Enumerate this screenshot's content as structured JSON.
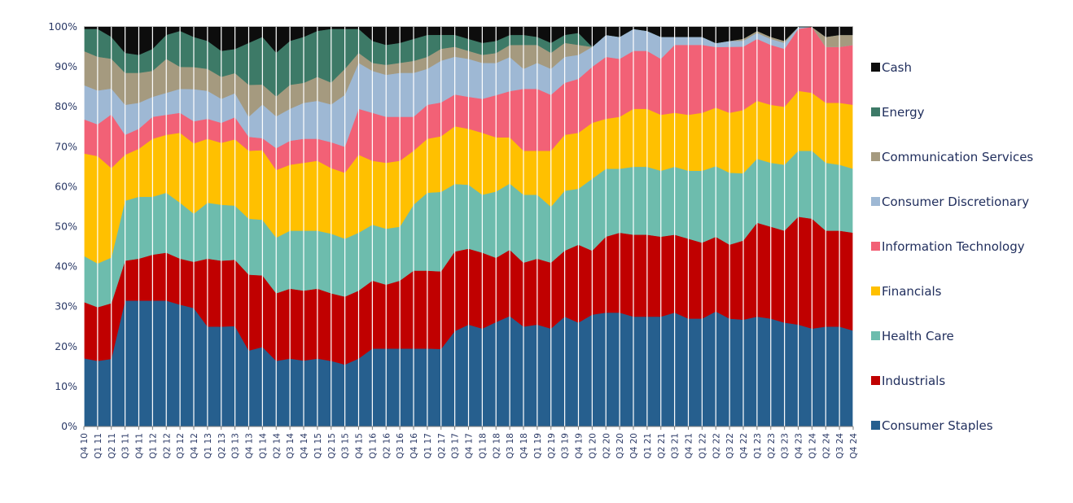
{
  "chart_data": {
    "type": "area",
    "stacked": true,
    "normalized": true,
    "title": "",
    "xlabel": "",
    "ylabel": "",
    "ylim": [
      0,
      100
    ],
    "yticks": [
      "0%",
      "10%",
      "20%",
      "30%",
      "40%",
      "50%",
      "60%",
      "70%",
      "80%",
      "90%",
      "100%"
    ],
    "legend_position": "right",
    "grid": false,
    "categories": [
      "Q4 10",
      "Q1 11",
      "Q2 11",
      "Q3 11",
      "Q4 11",
      "Q1 12",
      "Q2 12",
      "Q3 12",
      "Q4 12",
      "Q1 13",
      "Q2 13",
      "Q3 13",
      "Q4 13",
      "Q1 14",
      "Q2 14",
      "Q3 14",
      "Q4 14",
      "Q1 15",
      "Q2 15",
      "Q3 15",
      "Q4 15",
      "Q1 16",
      "Q2 16",
      "Q3 16",
      "Q4 16",
      "Q1 17",
      "Q2 17",
      "Q3 17",
      "Q4 17",
      "Q1 18",
      "Q2 18",
      "Q3 18",
      "Q4 18",
      "Q1 19",
      "Q2 19",
      "Q3 19",
      "Q4 19",
      "Q1 20",
      "Q2 20",
      "Q3 20",
      "Q4 20",
      "Q1 21",
      "Q2 21",
      "Q3 21",
      "Q4 21",
      "Q1 22",
      "Q2 22",
      "Q3 22",
      "Q4 22",
      "Q1 23",
      "Q2 23",
      "Q3 23",
      "Q4 23",
      "Q1 24",
      "Q2 24",
      "Q3 24",
      "Q4 24"
    ],
    "x_tick_labels": [
      "Q4 10",
      "Q1 11",
      "Q2 11",
      "Q3 11",
      "Q4 11",
      "Q1 12",
      "Q2 12",
      "Q3 12",
      "Q4 12",
      "Q1 13",
      "Q2 13",
      "Q3 13",
      "Q4 13",
      "Q1 14",
      "Q2 14",
      "Q3 14",
      "Q4 14",
      "Q1 15",
      "Q2 15",
      "Q3 15",
      "Q4 15",
      "Q1 16",
      "Q2 16",
      "Q3 16",
      "Q4 16",
      "Q1 17",
      "Q2 17",
      "Q3 17",
      "Q4 17",
      "Q1 18",
      "Q2 18",
      "Q3 18",
      "Q4 18",
      "Q1 19",
      "Q2 19",
      "Q3 19",
      "Q4 19",
      "Q1 20",
      "Q2 20",
      "Q3 20",
      "Q4 20",
      "Q1 21",
      "Q2 21",
      "Q3 21",
      "Q4 21",
      "Q1 22",
      "Q2 22",
      "Q3 22",
      "Q4 22",
      "Q1 23",
      "Q2 23",
      "Q3 23",
      "Q4 23",
      "Q1 24",
      "Q2 24",
      "Q3 24",
      "Q4 24"
    ],
    "series": [
      {
        "name": "Consumer Staples",
        "color": "#265f8e",
        "values": [
          17,
          16.5,
          17,
          31.5,
          31.5,
          31.5,
          31.5,
          30.5,
          29.5,
          25,
          25,
          25,
          19,
          20,
          16.5,
          17,
          16.5,
          17,
          16.5,
          15.5,
          17,
          19.5,
          19.5,
          19.5,
          19.5,
          19.5,
          19.5,
          24,
          25.5,
          24.5,
          26,
          27.5,
          25,
          25.5,
          24.5,
          27.5,
          26,
          28,
          28.5,
          28.5,
          27.5,
          27.5,
          27.5,
          28.5,
          27,
          27,
          28.5,
          27,
          27,
          27.5,
          27,
          26,
          25.5,
          24.5,
          25,
          25,
          24
        ]
      },
      {
        "name": "Industrials",
        "color": "#c00000",
        "values": [
          14,
          13.5,
          14,
          10,
          10.5,
          11.5,
          12,
          11.5,
          11.5,
          17,
          16.5,
          16.5,
          19,
          18,
          17,
          17.5,
          17.5,
          17.5,
          17,
          17,
          17,
          17,
          16,
          17,
          19.5,
          19.5,
          19.5,
          20,
          19,
          19,
          16,
          16.5,
          16,
          16.5,
          16.5,
          16.5,
          19.5,
          16,
          19,
          20,
          20.5,
          20.5,
          20,
          19.5,
          20,
          19,
          18.5,
          18.5,
          20,
          23.5,
          23,
          23,
          27,
          27.5,
          24,
          24,
          24.5
        ]
      },
      {
        "name": "Health Care",
        "color": "#6dbcad",
        "values": [
          11.5,
          11,
          11.5,
          15,
          15.5,
          14.5,
          15,
          14,
          12,
          14,
          14,
          13.5,
          14,
          14,
          14,
          14.5,
          15,
          14.5,
          15,
          14.5,
          14.5,
          14,
          14,
          13.5,
          16.5,
          19.5,
          20,
          17,
          16,
          14.5,
          16.5,
          16.5,
          17,
          16,
          14,
          15,
          14,
          18,
          17,
          16,
          17,
          17,
          16.5,
          17,
          17,
          18,
          17.5,
          18,
          17,
          16,
          16,
          16.5,
          16.5,
          17,
          17,
          16.5,
          16
        ]
      },
      {
        "name": "Financials",
        "color": "#ffc000",
        "values": [
          25.5,
          27,
          22.5,
          11.5,
          12,
          14.5,
          14.5,
          17.5,
          17.5,
          16,
          15.5,
          16.5,
          17,
          17.5,
          17,
          16.5,
          17,
          17.5,
          16.5,
          16.5,
          19.5,
          16,
          16.5,
          16.5,
          13.5,
          13.5,
          14,
          14.5,
          14,
          15.5,
          13.5,
          11.5,
          11,
          11,
          14,
          14,
          14,
          14,
          12.5,
          13,
          14.5,
          14.5,
          14,
          13.5,
          14,
          14.5,
          14.5,
          15,
          16,
          14.5,
          14.5,
          14.5,
          15,
          14.5,
          15,
          15.5,
          16
        ]
      },
      {
        "name": "Information Technology",
        "color": "#f26176",
        "values": [
          8.5,
          8,
          13.5,
          5,
          5,
          5.5,
          5,
          5,
          5.5,
          5,
          5,
          5.5,
          3.5,
          3,
          5.5,
          6,
          6,
          5.5,
          6.5,
          6.5,
          11.5,
          12,
          11.5,
          11,
          8.5,
          8.5,
          8.5,
          8,
          8,
          8.5,
          10.5,
          11.5,
          15.5,
          15.5,
          14,
          13,
          13.5,
          14,
          15.5,
          14.5,
          14.5,
          14.5,
          14,
          17,
          17.5,
          17,
          15,
          16.5,
          16,
          15.5,
          15,
          14.5,
          15.5,
          16.5,
          14,
          14,
          15
        ]
      },
      {
        "name": "Consumer Discretionary",
        "color": "#9eb8d4",
        "values": [
          8.5,
          8.5,
          6.5,
          7.5,
          6.5,
          5,
          5.5,
          6,
          8,
          7,
          6,
          6,
          5,
          8.5,
          8,
          8,
          9,
          9.5,
          9.5,
          13,
          11.5,
          10.5,
          10.5,
          11,
          11,
          9,
          10.5,
          9.5,
          9.5,
          9,
          8,
          8.5,
          5,
          6.5,
          6.5,
          6.5,
          6,
          5,
          5.5,
          5.5,
          5.5,
          5,
          5.5,
          2,
          2,
          2,
          1,
          1.5,
          1.5,
          1.5,
          1.5,
          1.5,
          0.5,
          0,
          0,
          0,
          0
        ]
      },
      {
        "name": "Communication Services",
        "color": "#a59a7f",
        "values": [
          8.5,
          8.5,
          7.5,
          8,
          7.5,
          6.5,
          8.5,
          5.5,
          5.5,
          5.5,
          5.5,
          5,
          8,
          5,
          5,
          6,
          5,
          6,
          5.5,
          6.5,
          2.5,
          2,
          2.5,
          2.5,
          3,
          3,
          3,
          2.5,
          2,
          2,
          2.5,
          3,
          6,
          4.5,
          4,
          3.5,
          2.5,
          0,
          0,
          0,
          0,
          0,
          0,
          0,
          0,
          0,
          0,
          0,
          0.5,
          0.5,
          0.5,
          0.5,
          0,
          0,
          2.5,
          3,
          2.5
        ]
      },
      {
        "name": "Energy",
        "color": "#3d7a67",
        "values": [
          5.5,
          7,
          5.5,
          5,
          4.5,
          5.5,
          6,
          9,
          7.5,
          7,
          6.5,
          6,
          10.5,
          12,
          11,
          11,
          11.5,
          11.5,
          13.5,
          10,
          6,
          5.5,
          5,
          5,
          5.5,
          5.5,
          3.5,
          3,
          3,
          3,
          3,
          2.5,
          2.5,
          2,
          2.5,
          2,
          3,
          0,
          0,
          0,
          0,
          0,
          0,
          0,
          0,
          0,
          0,
          0,
          0,
          0,
          0,
          0,
          0,
          0,
          0,
          0,
          0
        ]
      },
      {
        "name": "Cash",
        "color": "#0d0d0d",
        "values": [
          0.5,
          0.5,
          2.5,
          6.5,
          7,
          5.5,
          2,
          1,
          2.5,
          3.5,
          6,
          5.5,
          4,
          2.5,
          6.5,
          3.5,
          2.5,
          1,
          0.5,
          0.5,
          0.5,
          3.5,
          4.5,
          4,
          3,
          2,
          2,
          2,
          3,
          4,
          3.5,
          2,
          2,
          2.5,
          4,
          2,
          1.5,
          5,
          2,
          2.5,
          0.5,
          1,
          2.5,
          2.5,
          2.5,
          2.5,
          4,
          3.5,
          3,
          1,
          2.5,
          3.5,
          0,
          0,
          2.5,
          2,
          2
        ]
      }
    ]
  }
}
